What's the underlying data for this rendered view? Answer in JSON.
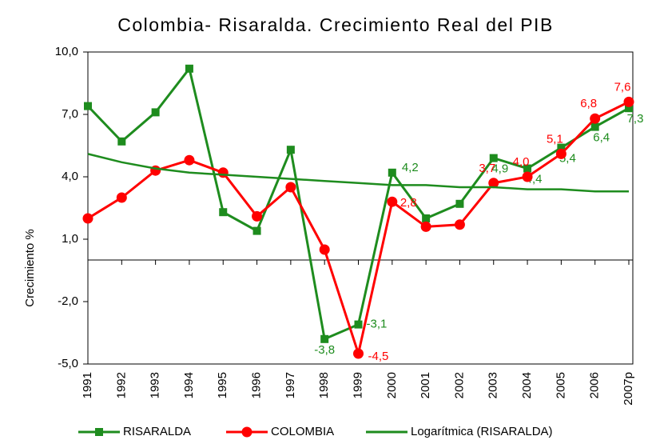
{
  "chart_data": {
    "type": "line",
    "title": "Colombia- Risaralda. Crecimiento Real del PIB",
    "y_label": "Crecimiento %",
    "categories": [
      "1991",
      "1992",
      "1993",
      "1994",
      "1995",
      "1996",
      "1997",
      "1998",
      "1999",
      "2000",
      "2001",
      "2002",
      "2003",
      "2004",
      "2005",
      "2006",
      "2007p"
    ],
    "ylim": [
      -5,
      10
    ],
    "yticks": [
      {
        "value": 10,
        "label": "10,0"
      },
      {
        "value": 7,
        "label": "7,0"
      },
      {
        "value": 4,
        "label": "4,0"
      },
      {
        "value": 1,
        "label": "1,0"
      },
      {
        "value": -2,
        "label": "-2,0"
      },
      {
        "value": -5,
        "label": "-5,0"
      }
    ],
    "grid": false,
    "legend": "bottom",
    "series": [
      {
        "name": "RISARALDA",
        "color": "#1e8c1e",
        "marker": "square",
        "values": [
          7.4,
          5.7,
          7.1,
          9.2,
          2.3,
          1.4,
          5.3,
          -3.8,
          -3.1,
          4.2,
          2.0,
          2.7,
          4.9,
          4.4,
          5.4,
          6.4,
          7.3
        ],
        "value_labels": [
          null,
          null,
          null,
          null,
          null,
          null,
          null,
          "-3,8",
          "-3,1",
          "4,2",
          null,
          null,
          "4,9",
          "4,4",
          "5,4",
          "6,4",
          "7,3"
        ]
      },
      {
        "name": "COLOMBIA",
        "color": "#ff0000",
        "marker": "circle",
        "values": [
          2.0,
          3.0,
          4.3,
          4.8,
          4.2,
          2.1,
          3.5,
          0.5,
          -4.5,
          2.8,
          1.6,
          1.7,
          3.7,
          4.0,
          5.1,
          6.8,
          7.6
        ],
        "value_labels": [
          null,
          null,
          null,
          null,
          null,
          null,
          null,
          null,
          "-4,5",
          "2,8",
          null,
          null,
          "3,7",
          "4,0",
          "5,1",
          "6,8",
          "7,6"
        ]
      },
      {
        "name": "Logarítmica (RISARALDA)",
        "color": "#1e8c1e",
        "marker": "none",
        "values": [
          5.1,
          4.7,
          4.4,
          4.2,
          4.1,
          4.0,
          3.9,
          3.8,
          3.7,
          3.6,
          3.6,
          3.5,
          3.5,
          3.4,
          3.4,
          3.3,
          3.3
        ]
      }
    ]
  }
}
